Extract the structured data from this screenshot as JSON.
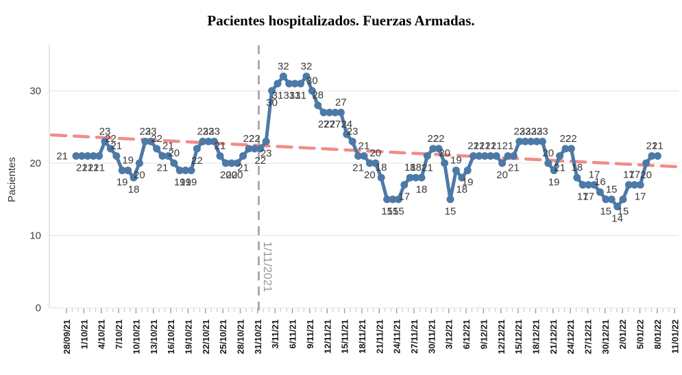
{
  "title": "Pacientes hospitalizados. Fuerzas Armadas.",
  "colors": {
    "series": "#4d79a7",
    "trend": "#f08c88",
    "vline": "#ababab",
    "vline_text": "#9a9a9a",
    "grid": "#e6e6e6",
    "axis": "#d9d9d9",
    "tick": "#bfbfbf",
    "point_label": "#383838",
    "date_label": "#1a1a1a",
    "ytick_label": "#404040"
  },
  "chart_data": {
    "type": "line",
    "title": "Pacientes hospitalizados. Fuerzas Armadas.",
    "xlabel": "",
    "ylabel": "Pacientes",
    "ylim": [
      0,
      34
    ],
    "grid": "horizontal",
    "legend_position": "none",
    "y_ticks": [
      0,
      10,
      20,
      30
    ],
    "x_tick_labels": [
      "28/09/21",
      "1/10/21",
      "4/10/21",
      "7/10/21",
      "10/10/21",
      "13/10/21",
      "16/10/21",
      "19/10/21",
      "22/10/21",
      "25/10/21",
      "28/10/21",
      "31/10/21",
      "3/11/21",
      "6/11/21",
      "9/11/21",
      "12/11/21",
      "15/11/21",
      "18/11/21",
      "21/11/21",
      "24/11/21",
      "27/11/21",
      "30/11/21",
      "3/12/21",
      "6/12/21",
      "9/12/21",
      "12/12/21",
      "15/12/21",
      "18/12/21",
      "21/12/21",
      "24/12/21",
      "27/12/21",
      "30/12/21",
      "2/01/22",
      "5/01/22",
      "8/01/22",
      "11/01/22"
    ],
    "series": [
      {
        "name": "Pacientes hospitalizados",
        "point_labels_shown": true,
        "values": [
          21,
          21,
          21,
          21,
          21,
          23,
          22,
          21,
          19,
          19,
          18,
          20,
          23,
          23,
          22,
          21,
          21,
          20,
          19,
          19,
          19,
          22,
          23,
          23,
          23,
          21,
          20,
          20,
          20,
          21,
          22,
          22,
          22,
          23,
          30,
          31,
          32,
          31,
          31,
          31,
          32,
          30,
          28,
          27,
          27,
          27,
          27,
          24,
          23,
          21,
          21,
          20,
          20,
          18,
          15,
          15,
          15,
          17,
          18,
          18,
          18,
          21,
          22,
          22,
          20,
          15,
          19,
          18,
          19,
          21,
          21,
          21,
          21,
          21,
          20,
          21,
          21,
          23,
          23,
          23,
          23,
          23,
          20,
          19,
          21,
          22,
          22,
          18,
          17,
          17,
          17,
          16,
          15,
          15,
          14,
          15,
          17,
          17,
          17,
          20,
          21,
          21
        ]
      }
    ],
    "annotations": {
      "vline_label": "1/11/2021",
      "vline_style": "dashed",
      "trend_line": {
        "style": "dashed",
        "start_value": 23.9,
        "end_value": 19.5
      }
    }
  }
}
